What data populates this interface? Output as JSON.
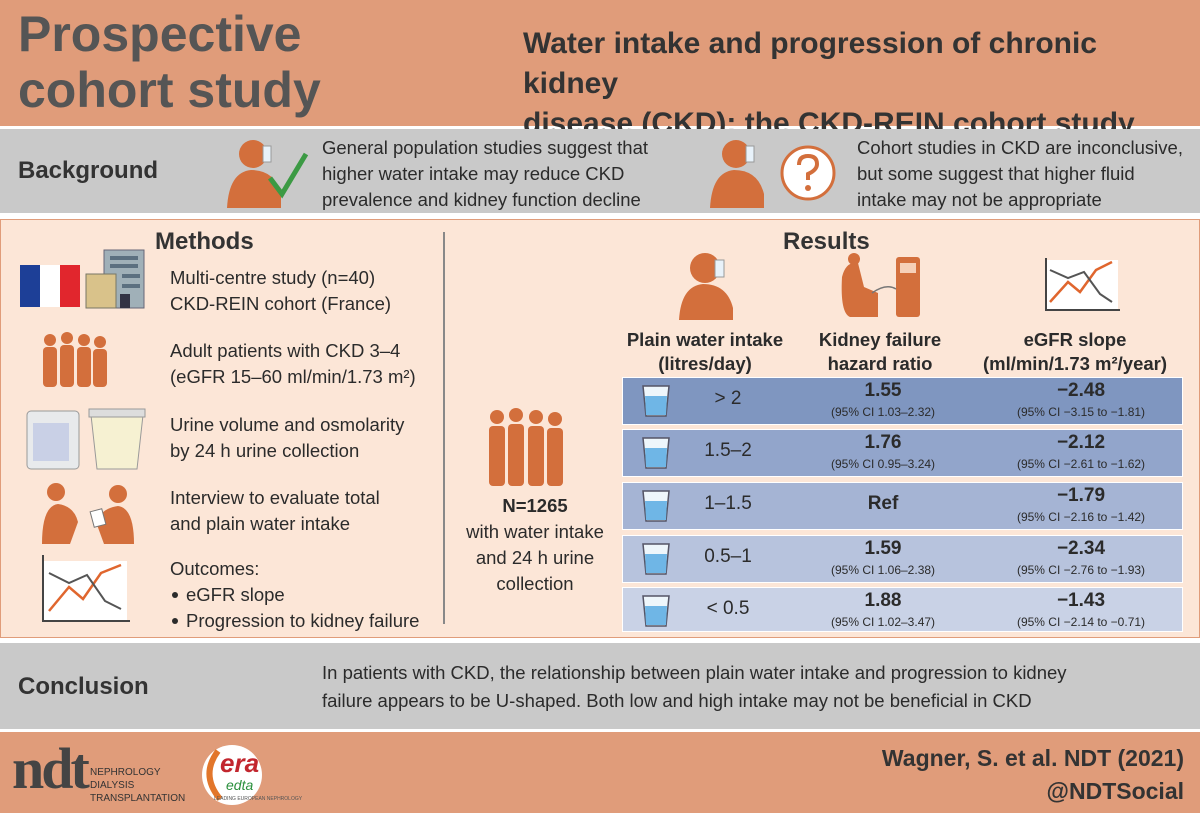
{
  "header": {
    "study_type": [
      "Prospective",
      "cohort study"
    ],
    "title": [
      "Water intake and progression of chronic kidney",
      "disease (CKD): the CKD-REIN cohort study"
    ]
  },
  "background": {
    "label": "Background",
    "left": [
      "General population studies suggest that",
      "higher water intake may reduce CKD",
      "prevalence and kidney function decline"
    ],
    "right": [
      "Cohort studies in CKD are inconclusive,",
      "but some suggest that higher fluid",
      "intake may not be appropriate"
    ]
  },
  "methods": {
    "title": "Methods",
    "items": [
      {
        "lines": [
          "Multi-centre study (n=40)",
          "CKD-REIN cohort (France)"
        ]
      },
      {
        "lines": [
          "Adult patients with CKD 3–4",
          "(eGFR 15–60 ml/min/1.73 m²)"
        ]
      },
      {
        "lines": [
          "Urine volume and osmolarity",
          "by 24 h urine collection"
        ]
      },
      {
        "lines": [
          "Interview to evaluate total",
          "and plain water intake"
        ]
      }
    ],
    "outcomes": {
      "label": "Outcomes:",
      "bullets": [
        "eGFR slope",
        "Progression to kidney failure"
      ]
    }
  },
  "results": {
    "title": "Results",
    "n": "N=1265",
    "n_desc": [
      "with water intake",
      "and 24 h urine",
      "collection"
    ],
    "headers": [
      [
        "Plain water intake",
        "(litres/day)"
      ],
      [
        "Kidney failure",
        "hazard ratio"
      ],
      [
        "eGFR slope",
        "(ml/min/1.73 m²/year)"
      ]
    ],
    "rows": [
      {
        "intake": "> 2",
        "hr": "1.55",
        "hr_ci": "(95% CI 1.03–2.32)",
        "slope": "−2.48",
        "slope_ci": "(95% CI −3.15 to −1.81)"
      },
      {
        "intake": "1.5–2",
        "hr": "1.76",
        "hr_ci": "(95% CI 0.95–3.24)",
        "slope": "−2.12",
        "slope_ci": "(95% CI −2.61 to −1.62)"
      },
      {
        "intake": "1–1.5",
        "hr": "Ref",
        "hr_ci": null,
        "slope": "−1.79",
        "slope_ci": "(95% CI −2.16 to −1.42)"
      },
      {
        "intake": "0.5–1",
        "hr": "1.59",
        "hr_ci": "(95% CI 1.06–2.38)",
        "slope": "−2.34",
        "slope_ci": "(95% CI −2.76 to −1.93)"
      },
      {
        "intake": "< 0.5",
        "hr": "1.88",
        "hr_ci": "(95% CI 1.02–3.47)",
        "slope": "−1.43",
        "slope_ci": "(95% CI −2.14 to −0.71)"
      }
    ]
  },
  "conclusion": {
    "label": "Conclusion",
    "lines": [
      "In patients with CKD, the relationship between plain water intake and progression to kidney",
      "failure appears to be U-shaped. Both low and high intake may not be beneficial in CKD"
    ]
  },
  "footer": {
    "citation": "Wagner, S. et al. NDT (2021)",
    "handle": "@NDTSocial",
    "ndt_logo": {
      "mark": "ndt",
      "lines": [
        "NEPHROLOGY",
        "DIALYSIS",
        "TRANSPLANTATION"
      ]
    },
    "era_logo": {
      "mark": "era",
      "sub": "edta",
      "tagline": "LEADING EUROPEAN NEPHROLOGY"
    }
  }
}
